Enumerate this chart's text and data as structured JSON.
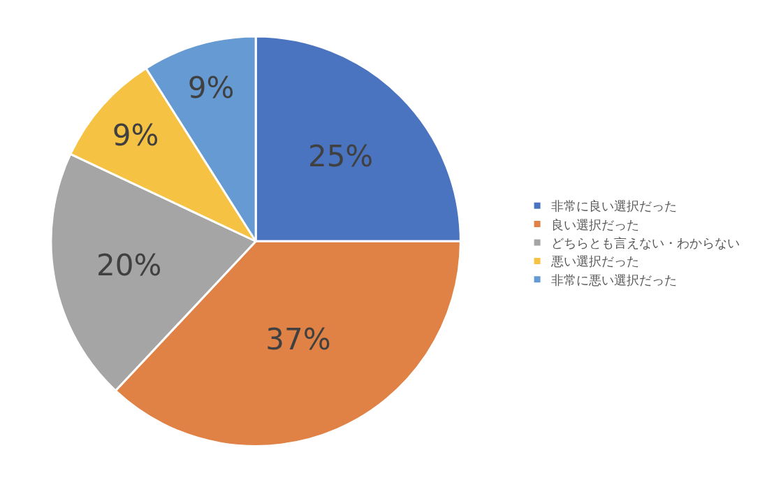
{
  "chart_data": {
    "type": "pie",
    "categories": [
      "非常に良い選択だった",
      "良い選択だった",
      "どちらとも言えない・わからない",
      "悪い選択だった",
      "非常に悪い選択だった"
    ],
    "values": [
      25,
      37,
      20,
      9,
      9
    ],
    "value_labels": [
      "25%",
      "37%",
      "20%",
      "9%",
      "9%"
    ],
    "colors": [
      "#4a74c0",
      "#e08245",
      "#a5a5a5",
      "#f6c244",
      "#659bd2"
    ],
    "legend": "right"
  }
}
